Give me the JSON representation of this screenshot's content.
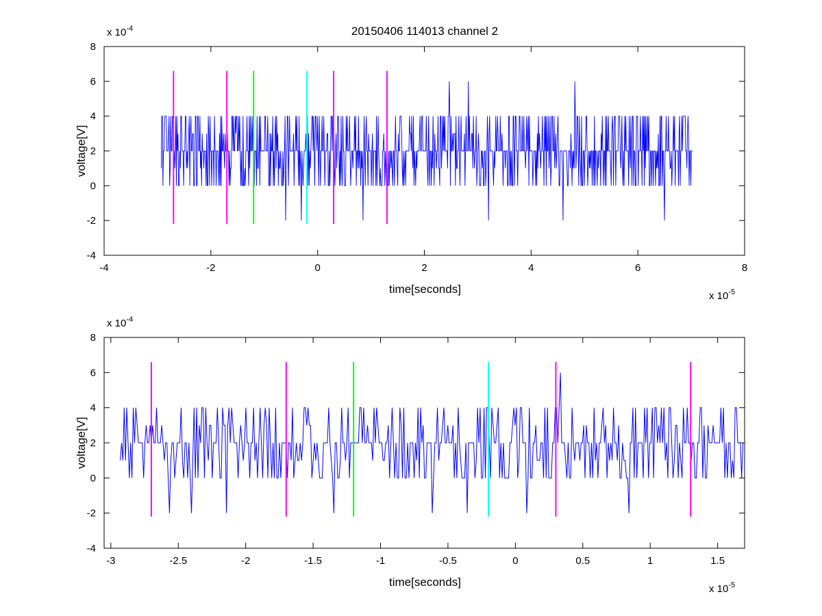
{
  "figure": {
    "title": "20150406 114013 channel 2",
    "trace_color": "#0000ff",
    "marker_colors": {
      "magenta": "#ff00ff",
      "green": "#00ff00",
      "cyan": "#00ffff"
    }
  },
  "chart_data": [
    {
      "type": "line",
      "title": "20150406 114013 channel 2",
      "xlabel": "time[seconds]",
      "ylabel": "voltage[V]",
      "x_multiplier": {
        "base": "x 10",
        "exp": "-5"
      },
      "y_multiplier": {
        "base": "x 10",
        "exp": "-4"
      },
      "xlim": [
        -4,
        8
      ],
      "ylim": [
        -4,
        8
      ],
      "xticks": [
        -4,
        -2,
        0,
        2,
        4,
        6,
        8
      ],
      "xtick_labels": [
        "-4",
        "-2",
        "0",
        "2",
        "4",
        "6",
        "8"
      ],
      "yticks": [
        -4,
        -2,
        0,
        2,
        4,
        6,
        8
      ],
      "ytick_labels": [
        "-4",
        "-2",
        "0",
        "2",
        "4",
        "6",
        "8"
      ],
      "grid": false,
      "series": [
        {
          "color": "#0000ff",
          "x_range": [
            -2.93,
            7.03
          ],
          "levels": [
            -2,
            0,
            1,
            2,
            3,
            4,
            6
          ],
          "spikes": [
            {
              "x": 2.47,
              "y": 6
            },
            {
              "x": 2.82,
              "y": 6
            },
            {
              "x": 4.82,
              "y": 6
            },
            {
              "x": -0.6,
              "y": -2
            },
            {
              "x": -0.3,
              "y": -2
            },
            {
              "x": 0.85,
              "y": -2
            },
            {
              "x": 3.2,
              "y": -2
            },
            {
              "x": 4.6,
              "y": -2
            },
            {
              "x": 6.5,
              "y": -2
            }
          ]
        }
      ],
      "markers": [
        {
          "x": -2.7,
          "color": "#ff00ff",
          "y_range": [
            -2.2,
            6.6
          ]
        },
        {
          "x": -1.7,
          "color": "#ff00ff",
          "y_range": [
            -2.2,
            6.6
          ]
        },
        {
          "x": -1.2,
          "color": "#00ff00",
          "y_range": [
            -2.2,
            6.6
          ]
        },
        {
          "x": -0.2,
          "color": "#00ffff",
          "y_range": [
            -2.2,
            6.6
          ]
        },
        {
          "x": 0.3,
          "color": "#ff00ff",
          "y_range": [
            -2.2,
            6.6
          ]
        },
        {
          "x": 1.3,
          "color": "#ff00ff",
          "y_range": [
            -2.2,
            6.6
          ]
        }
      ]
    },
    {
      "type": "line",
      "xlabel": "time[seconds]",
      "ylabel": "voltage[V]",
      "x_multiplier": {
        "base": "x 10",
        "exp": "-5"
      },
      "y_multiplier": {
        "base": "x 10",
        "exp": "-4"
      },
      "xlim": [
        -3.05,
        1.7
      ],
      "ylim": [
        -4,
        8
      ],
      "xticks": [
        -3,
        -2.5,
        -2,
        -1.5,
        -1,
        -0.5,
        0,
        0.5,
        1,
        1.5
      ],
      "xtick_labels": [
        "-3",
        "-2.5",
        "-2",
        "-1.5",
        "-1",
        "-0.5",
        "0",
        "0.5",
        "1",
        "1.5"
      ],
      "yticks": [
        -4,
        -2,
        0,
        2,
        4,
        6,
        8
      ],
      "ytick_labels": [
        "-4",
        "-2",
        "0",
        "2",
        "4",
        "6",
        "8"
      ],
      "grid": false,
      "series": [
        {
          "color": "#0000ff",
          "x_range": [
            -2.93,
            1.7
          ],
          "levels": [
            -2,
            0,
            1,
            2,
            3,
            4,
            6
          ],
          "spikes": [
            {
              "x": 0.33,
              "y": 6
            },
            {
              "x": -2.57,
              "y": -2
            },
            {
              "x": -2.4,
              "y": -2
            },
            {
              "x": -2.14,
              "y": -2
            },
            {
              "x": -1.35,
              "y": -2
            },
            {
              "x": -0.62,
              "y": -2
            },
            {
              "x": -0.36,
              "y": -2
            },
            {
              "x": 0.08,
              "y": -2
            },
            {
              "x": 0.84,
              "y": -2
            }
          ]
        }
      ],
      "markers": [
        {
          "x": -2.7,
          "color": "#ff00ff",
          "y_range": [
            -2.2,
            6.6
          ]
        },
        {
          "x": -1.7,
          "color": "#ff00ff",
          "y_range": [
            -2.2,
            6.6
          ]
        },
        {
          "x": -1.2,
          "color": "#00ff00",
          "y_range": [
            -2.2,
            6.6
          ]
        },
        {
          "x": -0.2,
          "color": "#00ffff",
          "y_range": [
            -2.2,
            6.6
          ]
        },
        {
          "x": 0.3,
          "color": "#ff00ff",
          "y_range": [
            -2.2,
            6.6
          ]
        },
        {
          "x": 1.3,
          "color": "#ff00ff",
          "y_range": [
            -2.2,
            6.6
          ]
        }
      ]
    }
  ]
}
